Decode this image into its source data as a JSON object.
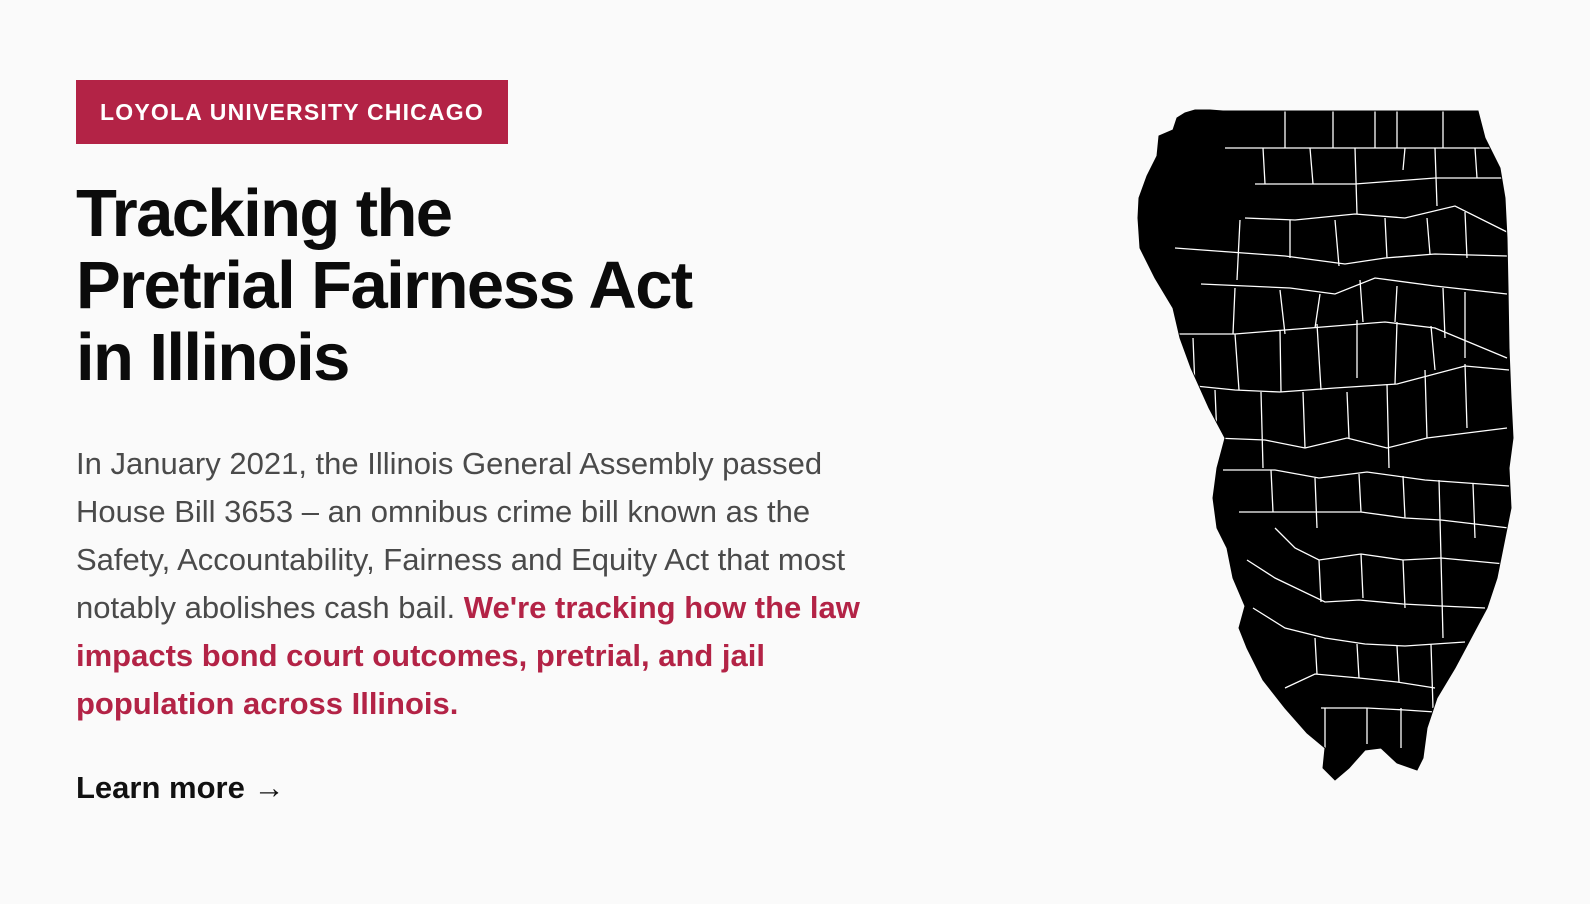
{
  "badge": {
    "label": "LOYOLA UNIVERSITY CHICAGO"
  },
  "hero": {
    "title_lines": [
      "Tracking the",
      "Pretrial Fairness Act",
      "in Illinois"
    ],
    "intro": "In January 2021, the Illinois General Assembly passed House Bill 3653 – an omnibus crime bill known as the Safety, Accountability, Fairness and Equity Act that most notably abolishes cash bail.",
    "highlight": "We're tracking how the law impacts bond court outcomes, pretrial, and jail population across Illinois.",
    "cta": "Learn more →"
  },
  "map": {
    "name": "illinois-county-map-icon",
    "fill": "#000000",
    "border": "#ffffff"
  },
  "colors": {
    "accent": "#b32346",
    "background": "#fafafa",
    "text": "#0b0b0b",
    "body_text": "#4a4a4a"
  }
}
